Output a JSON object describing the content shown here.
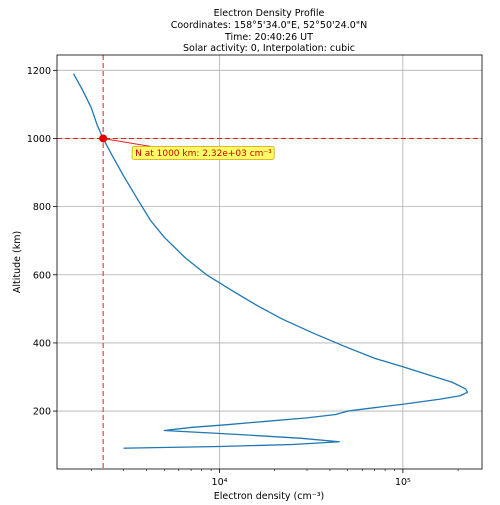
{
  "chart_data": {
    "type": "line",
    "title_lines": [
      "Electron Density Profile",
      "Coordinates: 158°5'34.0\"E, 52°50'24.0\"N",
      "Time: 20:40:26 UT",
      "Solar activity: 0, Interpolation: cubic"
    ],
    "xlabel": "Electron density (cm⁻³)",
    "ylabel": "Altitude (km)",
    "xscale": "log",
    "xlim": [
      1300,
      270000
    ],
    "ylim": [
      30,
      1245
    ],
    "x_ticks": [
      {
        "value": 10000,
        "label": "10⁴"
      },
      {
        "value": 100000,
        "label": "10⁵"
      }
    ],
    "y_ticks": [
      200,
      400,
      600,
      800,
      1000,
      1200
    ],
    "grid": true,
    "color": "#1f77b4",
    "series": [
      {
        "points": [
          [
            1600,
            1190
          ],
          [
            1800,
            1140
          ],
          [
            2000,
            1090
          ],
          [
            2150,
            1040
          ],
          [
            2320,
            1000
          ],
          [
            2600,
            950
          ],
          [
            3000,
            890
          ],
          [
            3500,
            830
          ],
          [
            4200,
            760
          ],
          [
            5000,
            710
          ],
          [
            6500,
            650
          ],
          [
            8500,
            600
          ],
          [
            12000,
            550
          ],
          [
            16000,
            510
          ],
          [
            22000,
            470
          ],
          [
            32000,
            430
          ],
          [
            48000,
            390
          ],
          [
            70000,
            355
          ],
          [
            100000,
            330
          ],
          [
            140000,
            305
          ],
          [
            185000,
            285
          ],
          [
            220000,
            265
          ],
          [
            225000,
            255
          ],
          [
            205000,
            245
          ],
          [
            160000,
            235
          ],
          [
            100000,
            220
          ],
          [
            70000,
            210
          ],
          [
            50000,
            200
          ],
          [
            43000,
            190
          ],
          [
            30000,
            180
          ],
          [
            18000,
            170
          ],
          [
            11000,
            160
          ],
          [
            7000,
            152
          ],
          [
            5000,
            143
          ],
          [
            12000,
            132
          ],
          [
            28000,
            120
          ],
          [
            45000,
            110
          ],
          [
            25000,
            102
          ],
          [
            10000,
            96
          ],
          [
            3000,
            91
          ]
        ]
      }
    ],
    "reference": {
      "altitude": 1000,
      "density": 2320,
      "label": "N at 1000 km: 2.32e+03 cm⁻³"
    }
  }
}
